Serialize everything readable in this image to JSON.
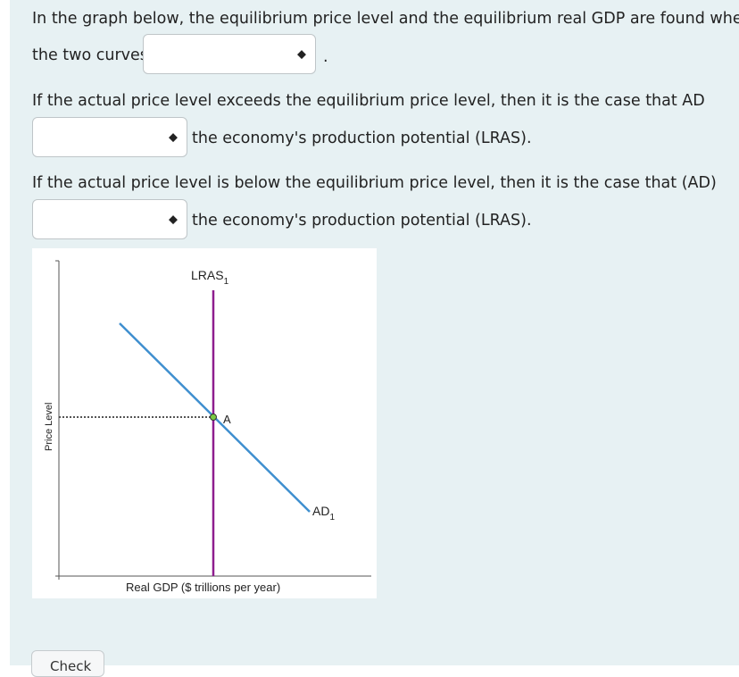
{
  "question": {
    "line1": "In the graph below, the equilibrium price level and the equilibrium real GDP are found where",
    "line2_prefix": "the two curves",
    "line2_suffix": ".",
    "q2_line1": "If the actual price level exceeds the equilibrium price level, then it is the case that AD",
    "q2_suffix": "the economy's production potential (LRAS).",
    "q3_line1": "If the actual price level is below the equilibrium price level, then it is the case that (AD)",
    "q3_suffix": "the economy's production potential (LRAS)."
  },
  "dropdowns": {
    "curves_value": "",
    "above_value": "",
    "below_value": ""
  },
  "graph": {
    "lras_label": "LRAS",
    "lras_sub": "1",
    "ad_label": "AD",
    "ad_sub": "1",
    "point_label": "A",
    "x_axis_label": "Real GDP ($ trillions per year)",
    "y_axis_label": "Price Level",
    "colors": {
      "lras": "#8e1d8e",
      "ad": "#3f8fcf",
      "point": "#7ac943",
      "axis": "#555555"
    }
  },
  "buttons": {
    "check_label": "Check"
  },
  "icons": {
    "dropdown": "up-down-caret-icon"
  }
}
